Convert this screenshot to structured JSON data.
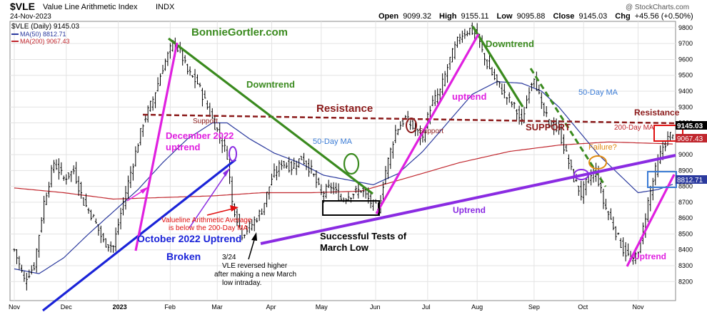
{
  "header": {
    "symbol": "$VLE",
    "index_name": "Value Line Arithmetic Index",
    "exchange": "INDX",
    "date": "24-Nov-2023",
    "watermark": "@ StockCharts.com",
    "ohlc": {
      "open_label": "Open",
      "open": "9099.32",
      "high_label": "High",
      "high": "9155.11",
      "low_label": "Low",
      "low": "9095.88",
      "close_label": "Close",
      "close": "9145.03",
      "chg_label": "Chg",
      "chg": "+45.56 (+0.50%)"
    }
  },
  "legend": [
    {
      "text": "$VLE (Daily) 9145.03",
      "color": "#000000"
    },
    {
      "text": "MA(50) 8812.71",
      "color": "#2b3a9e"
    },
    {
      "text": "MA(200) 9067.43",
      "color": "#c0262d"
    }
  ],
  "colors": {
    "price": "#000000",
    "ma50": "#2b3a9e",
    "ma200": "#c0262d",
    "green": "#3a8a1e",
    "magenta": "#e020e0",
    "blue": "#1a23d8",
    "purple": "#8a2be2",
    "darkred": "#8b1a1a",
    "orange": "#e08a10",
    "grid": "#e3e3e3",
    "axis": "#555555"
  },
  "chart_data": {
    "type": "line",
    "ylim": [
      8080,
      9840
    ],
    "x_range": [
      0,
      266
    ],
    "y_ticks": [
      "8200",
      "8300",
      "8400",
      "8500",
      "8600",
      "8700",
      "8800",
      "8900",
      "9000",
      "9100",
      "9200",
      "9300",
      "9400",
      "9500",
      "9600",
      "9700",
      "9800"
    ],
    "month_ticks": [
      {
        "label": "Nov",
        "x": 0
      },
      {
        "label": "Dec",
        "x": 21
      },
      {
        "label": "2023",
        "x": 42
      },
      {
        "label": "Feb",
        "x": 63
      },
      {
        "label": "Mar",
        "x": 82
      },
      {
        "label": "Apr",
        "x": 104
      },
      {
        "label": "May",
        "x": 124
      },
      {
        "label": "Jun",
        "x": 146
      },
      {
        "label": "Jul",
        "x": 167
      },
      {
        "label": "Aug",
        "x": 187
      },
      {
        "label": "Sep",
        "x": 210
      },
      {
        "label": "Oct",
        "x": 230
      },
      {
        "label": "Nov",
        "x": 252
      }
    ],
    "price_keypoints": [
      [
        0,
        8400
      ],
      [
        4,
        8210
      ],
      [
        8,
        8300
      ],
      [
        12,
        8700
      ],
      [
        16,
        8950
      ],
      [
        20,
        8850
      ],
      [
        24,
        8900
      ],
      [
        28,
        8700
      ],
      [
        32,
        8600
      ],
      [
        36,
        8450
      ],
      [
        40,
        8420
      ],
      [
        44,
        8700
      ],
      [
        48,
        8950
      ],
      [
        52,
        9200
      ],
      [
        56,
        9350
      ],
      [
        60,
        9550
      ],
      [
        64,
        9700
      ],
      [
        67,
        9650
      ],
      [
        70,
        9520
      ],
      [
        74,
        9450
      ],
      [
        78,
        9300
      ],
      [
        82,
        9150
      ],
      [
        86,
        9000
      ],
      [
        88,
        8700
      ],
      [
        92,
        8500
      ],
      [
        96,
        8560
      ],
      [
        100,
        8650
      ],
      [
        104,
        8850
      ],
      [
        108,
        8950
      ],
      [
        112,
        8920
      ],
      [
        116,
        8980
      ],
      [
        120,
        8900
      ],
      [
        124,
        8750
      ],
      [
        128,
        8800
      ],
      [
        132,
        8720
      ],
      [
        136,
        8750
      ],
      [
        140,
        8780
      ],
      [
        144,
        8700
      ],
      [
        147,
        8650
      ],
      [
        150,
        8900
      ],
      [
        154,
        9150
      ],
      [
        158,
        9230
      ],
      [
        162,
        9150
      ],
      [
        165,
        9100
      ],
      [
        168,
        9300
      ],
      [
        172,
        9400
      ],
      [
        176,
        9600
      ],
      [
        180,
        9750
      ],
      [
        184,
        9790
      ],
      [
        187,
        9750
      ],
      [
        190,
        9600
      ],
      [
        194,
        9480
      ],
      [
        198,
        9380
      ],
      [
        202,
        9300
      ],
      [
        205,
        9200
      ],
      [
        208,
        9420
      ],
      [
        210,
        9500
      ],
      [
        213,
        9300
      ],
      [
        216,
        9200
      ],
      [
        220,
        9150
      ],
      [
        223,
        9000
      ],
      [
        226,
        8850
      ],
      [
        229,
        8750
      ],
      [
        232,
        8850
      ],
      [
        235,
        8900
      ],
      [
        238,
        8700
      ],
      [
        242,
        8550
      ],
      [
        246,
        8400
      ],
      [
        250,
        8320
      ],
      [
        253,
        8450
      ],
      [
        256,
        8700
      ],
      [
        259,
        8900
      ],
      [
        262,
        9050
      ],
      [
        264,
        9100
      ],
      [
        266,
        9145
      ]
    ],
    "ma50_keypoints": [
      [
        0,
        8280
      ],
      [
        10,
        8250
      ],
      [
        20,
        8350
      ],
      [
        30,
        8500
      ],
      [
        40,
        8640
      ],
      [
        50,
        8780
      ],
      [
        60,
        8950
      ],
      [
        70,
        9100
      ],
      [
        80,
        9200
      ],
      [
        86,
        9200
      ],
      [
        95,
        9100
      ],
      [
        105,
        9010
      ],
      [
        115,
        8950
      ],
      [
        125,
        8870
      ],
      [
        135,
        8840
      ],
      [
        145,
        8810
      ],
      [
        155,
        8880
      ],
      [
        165,
        9020
      ],
      [
        175,
        9200
      ],
      [
        185,
        9380
      ],
      [
        195,
        9460
      ],
      [
        205,
        9450
      ],
      [
        213,
        9400
      ],
      [
        220,
        9300
      ],
      [
        228,
        9150
      ],
      [
        236,
        9000
      ],
      [
        244,
        8880
      ],
      [
        252,
        8760
      ],
      [
        260,
        8780
      ],
      [
        266,
        8812.71
      ]
    ],
    "ma200_keypoints": [
      [
        0,
        8790
      ],
      [
        20,
        8760
      ],
      [
        40,
        8720
      ],
      [
        60,
        8730
      ],
      [
        80,
        8740
      ],
      [
        100,
        8760
      ],
      [
        120,
        8760
      ],
      [
        140,
        8770
      ],
      [
        160,
        8860
      ],
      [
        180,
        8950
      ],
      [
        200,
        9020
      ],
      [
        220,
        9060
      ],
      [
        240,
        9080
      ],
      [
        266,
        9067.43
      ]
    ]
  },
  "annotations": {
    "site": "BonnieGortler.com",
    "downtrend_1": "Downtrend",
    "downtrend_2": "Downtrend",
    "resistance_main": "Resistance",
    "resistance_right": "Resistance",
    "support_1": "Support",
    "support_2": "Support",
    "support_caps": "SUPPORT",
    "dec_uptrend_1": "December 2022",
    "dec_uptrend_2": "uptrend",
    "ma50_mid": "50-Day MA",
    "ma50_right": "50-Day MA",
    "ma200_right": "200-Day MA",
    "failure": "Failure?",
    "uptrend_jul": "uptrend",
    "uptrend_purple": "Uptrend",
    "uptrend_nov": "Uptrend",
    "oct_uptrend": "October 2022 Uptrend",
    "broken": "Broken",
    "vl_note_1": "Valueline Arithmetic Average",
    "vl_note_2": "is below the 200-Day MA",
    "tests_1": "Successful Tests of",
    "tests_2": "March Low",
    "note_date": "3/24",
    "note_1": "VLE reversed higher",
    "note_2": "after making a new March",
    "note_3": "low intraday."
  },
  "right_badges": {
    "price": "9145.03",
    "ma200": "9067.43",
    "ma50": "8812.71"
  }
}
